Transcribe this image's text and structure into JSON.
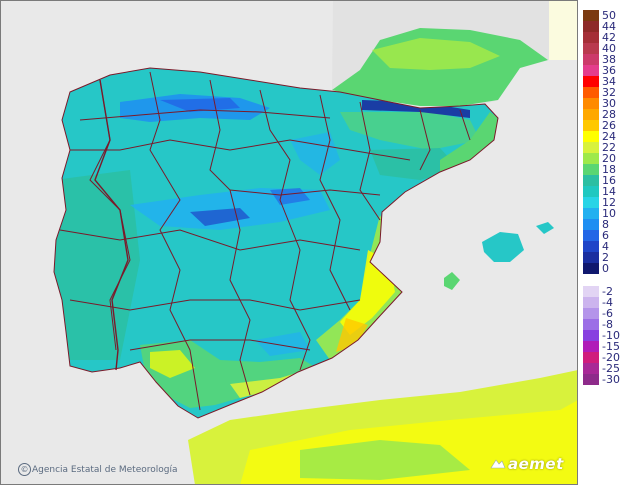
{
  "credit": {
    "text": "Agencia Estatal de Meteorología",
    "icon": "copyright-icon"
  },
  "brand": {
    "text": "aemet",
    "icon": "aemet-logo-icon"
  },
  "colors": {
    "sea": "#e9e9e9",
    "outside": "#fbfbdf",
    "land_base": "#26c7c7",
    "border": "#7a1a2a"
  },
  "legend": {
    "positive": [
      {
        "label": "50",
        "color": "#7b3a10"
      },
      {
        "label": "44",
        "color": "#8e2a28"
      },
      {
        "label": "42",
        "color": "#a52f37"
      },
      {
        "label": "40",
        "color": "#b93a4e"
      },
      {
        "label": "38",
        "color": "#cc3a6a"
      },
      {
        "label": "36",
        "color": "#e43c8c"
      },
      {
        "label": "34",
        "color": "#ff0000"
      },
      {
        "label": "32",
        "color": "#ff5a00"
      },
      {
        "label": "30",
        "color": "#ff8a00"
      },
      {
        "label": "28",
        "color": "#ffa800"
      },
      {
        "label": "26",
        "color": "#ffc800"
      },
      {
        "label": "24",
        "color": "#ffff00"
      },
      {
        "label": "22",
        "color": "#d8f23c"
      },
      {
        "label": "20",
        "color": "#9ee94a"
      },
      {
        "label": "18",
        "color": "#5ad672"
      },
      {
        "label": "16",
        "color": "#2cbfa2"
      },
      {
        "label": "14",
        "color": "#20c8c0"
      },
      {
        "label": "12",
        "color": "#28d4e6"
      },
      {
        "label": "10",
        "color": "#22b0f0"
      },
      {
        "label": "8",
        "color": "#1e8ef2"
      },
      {
        "label": "6",
        "color": "#2266e6"
      },
      {
        "label": "4",
        "color": "#1e44c8"
      },
      {
        "label": "2",
        "color": "#1a2ea0"
      },
      {
        "label": "0",
        "color": "#10186e"
      }
    ],
    "negative": [
      {
        "label": "-2",
        "color": "#e2d4f4"
      },
      {
        "label": "-4",
        "color": "#ccb4ee"
      },
      {
        "label": "-6",
        "color": "#b494ea"
      },
      {
        "label": "-8",
        "color": "#9c6ee6"
      },
      {
        "label": "-10",
        "color": "#8840e0"
      },
      {
        "label": "-15",
        "color": "#b01cb8"
      },
      {
        "label": "-20",
        "color": "#d01c7c"
      },
      {
        "label": "-25",
        "color": "#a82896"
      },
      {
        "label": "-30",
        "color": "#8e2b8a"
      }
    ]
  }
}
